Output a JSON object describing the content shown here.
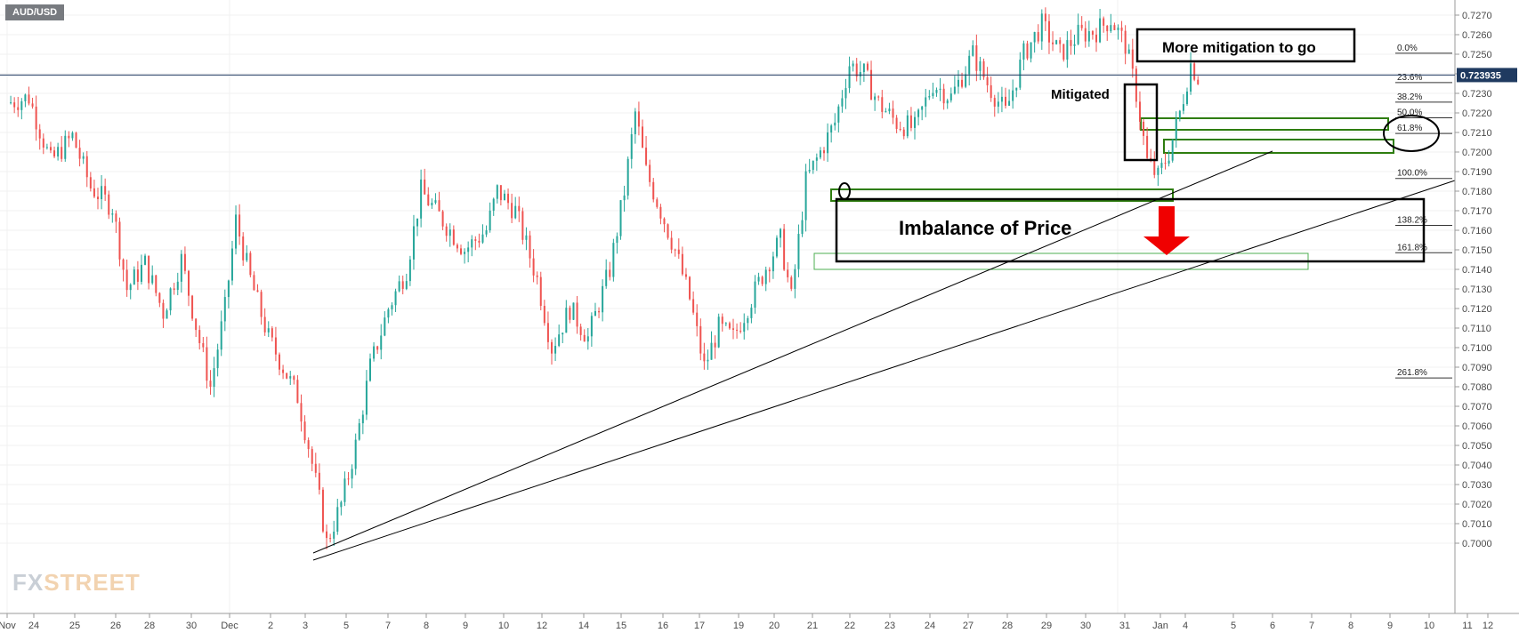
{
  "symbol": "AUD/USD",
  "logo": {
    "fx": "FX",
    "street": "STREET"
  },
  "price_tag": "0.723935",
  "colors": {
    "up": "#26a69a",
    "down": "#ef5350",
    "box": "#000000",
    "green": "#2e7d0f",
    "arrow": "#f00000",
    "price_tag_bg": "#1f3a60"
  },
  "annotations": {
    "more_mitigation": "More mitigation to go",
    "mitigated": "Mitigated",
    "imbalance": "Imbalance of Price"
  },
  "chart_data": {
    "type": "candlestick",
    "title": "",
    "xlabel": "",
    "ylabel": "",
    "ylim": [
      0.699,
      0.728
    ],
    "y_ticks": [
      "0.7270",
      "0.7260",
      "0.7250",
      "0.7240",
      "0.7230",
      "0.7220",
      "0.7210",
      "0.7200",
      "0.7190",
      "0.7180",
      "0.7170",
      "0.7160",
      "0.7150",
      "0.7140",
      "0.7130",
      "0.7120",
      "0.7110",
      "0.7100",
      "0.7090",
      "0.7080",
      "0.7070",
      "0.7060",
      "0.7050",
      "0.7040",
      "0.7030",
      "0.7020",
      "0.7010",
      "0.7000"
    ],
    "x_ticks": [
      "Nov",
      "24",
      "25",
      "26",
      "28",
      "30",
      "Dec",
      "2",
      "3",
      "5",
      "7",
      "8",
      "9",
      "10",
      "12",
      "14",
      "15",
      "16",
      "17",
      "19",
      "20",
      "21",
      "22",
      "23",
      "24",
      "27",
      "28",
      "29",
      "30",
      "31",
      "Jan",
      "4",
      "5",
      "6",
      "7",
      "8",
      "9",
      "10",
      "11",
      "12"
    ],
    "current_price": 0.723935,
    "fibonacci": [
      {
        "label": "0.0%",
        "price": 0.72505
      },
      {
        "label": "23.6%",
        "price": 0.72355
      },
      {
        "label": "38.2%",
        "price": 0.72255
      },
      {
        "label": "50.0%",
        "price": 0.72175
      },
      {
        "label": "61.8%",
        "price": 0.72095
      },
      {
        "label": "100.0%",
        "price": 0.71865
      },
      {
        "label": "138.2%",
        "price": 0.71625
      },
      {
        "label": "161.8%",
        "price": 0.71485
      },
      {
        "label": "261.8%",
        "price": 0.70845
      }
    ],
    "price_path": [
      {
        "t": 0,
        "p": 0.7225
      },
      {
        "t": 0.6,
        "p": 0.7228
      },
      {
        "t": 1.2,
        "p": 0.7195
      },
      {
        "t": 1.8,
        "p": 0.7208
      },
      {
        "t": 2.3,
        "p": 0.7182
      },
      {
        "t": 2.9,
        "p": 0.7172
      },
      {
        "t": 3.3,
        "p": 0.713
      },
      {
        "t": 3.8,
        "p": 0.7143
      },
      {
        "t": 4.3,
        "p": 0.7118
      },
      {
        "t": 4.8,
        "p": 0.7145
      },
      {
        "t": 5.3,
        "p": 0.7103
      },
      {
        "t": 5.6,
        "p": 0.708
      },
      {
        "t": 6.0,
        "p": 0.712
      },
      {
        "t": 6.3,
        "p": 0.7165
      },
      {
        "t": 6.7,
        "p": 0.7135
      },
      {
        "t": 7.2,
        "p": 0.7105
      },
      {
        "t": 7.6,
        "p": 0.709
      },
      {
        "t": 8.0,
        "p": 0.7075
      },
      {
        "t": 8.3,
        "p": 0.705
      },
      {
        "t": 8.6,
        "p": 0.7022
      },
      {
        "t": 8.8,
        "p": 0.7
      },
      {
        "t": 9.2,
        "p": 0.702
      },
      {
        "t": 9.6,
        "p": 0.705
      },
      {
        "t": 10.0,
        "p": 0.709
      },
      {
        "t": 10.5,
        "p": 0.712
      },
      {
        "t": 11.0,
        "p": 0.714
      },
      {
        "t": 11.4,
        "p": 0.718
      },
      {
        "t": 12.0,
        "p": 0.7165
      },
      {
        "t": 12.6,
        "p": 0.715
      },
      {
        "t": 13.2,
        "p": 0.716
      },
      {
        "t": 13.5,
        "p": 0.718
      },
      {
        "t": 14.0,
        "p": 0.717
      },
      {
        "t": 14.6,
        "p": 0.7135
      },
      {
        "t": 15.0,
        "p": 0.71
      },
      {
        "t": 15.5,
        "p": 0.712
      },
      {
        "t": 16.0,
        "p": 0.7105
      },
      {
        "t": 16.6,
        "p": 0.714
      },
      {
        "t": 17.0,
        "p": 0.718
      },
      {
        "t": 17.3,
        "p": 0.722
      },
      {
        "t": 17.6,
        "p": 0.719
      },
      {
        "t": 18.0,
        "p": 0.717
      },
      {
        "t": 18.4,
        "p": 0.715
      },
      {
        "t": 18.8,
        "p": 0.7125
      },
      {
        "t": 19.2,
        "p": 0.709
      },
      {
        "t": 19.6,
        "p": 0.711
      },
      {
        "t": 20.0,
        "p": 0.7105
      },
      {
        "t": 20.5,
        "p": 0.7125
      },
      {
        "t": 21.0,
        "p": 0.7145
      },
      {
        "t": 21.3,
        "p": 0.7155
      },
      {
        "t": 21.6,
        "p": 0.7125
      },
      {
        "t": 22.0,
        "p": 0.7185
      },
      {
        "t": 22.4,
        "p": 0.72
      },
      {
        "t": 22.8,
        "p": 0.7215
      },
      {
        "t": 23.2,
        "p": 0.7245
      },
      {
        "t": 23.6,
        "p": 0.724
      },
      {
        "t": 24.0,
        "p": 0.7225
      },
      {
        "t": 24.5,
        "p": 0.7215
      },
      {
        "t": 25.0,
        "p": 0.7212
      },
      {
        "t": 25.5,
        "p": 0.7235
      },
      {
        "t": 26.0,
        "p": 0.7228
      },
      {
        "t": 26.6,
        "p": 0.725
      },
      {
        "t": 27.0,
        "p": 0.7235
      },
      {
        "t": 27.5,
        "p": 0.722
      },
      {
        "t": 28.0,
        "p": 0.725
      },
      {
        "t": 28.5,
        "p": 0.7265
      },
      {
        "t": 29.0,
        "p": 0.725
      },
      {
        "t": 29.5,
        "p": 0.726
      },
      {
        "t": 30.0,
        "p": 0.7262
      },
      {
        "t": 30.4,
        "p": 0.7268
      },
      {
        "t": 30.8,
        "p": 0.7255
      },
      {
        "t": 31.1,
        "p": 0.723
      },
      {
        "t": 31.4,
        "p": 0.7195
      },
      {
        "t": 31.7,
        "p": 0.7187
      },
      {
        "t": 32.0,
        "p": 0.72
      },
      {
        "t": 32.3,
        "p": 0.722
      },
      {
        "t": 32.6,
        "p": 0.7245
      },
      {
        "t": 32.9,
        "p": 0.7235
      }
    ]
  }
}
